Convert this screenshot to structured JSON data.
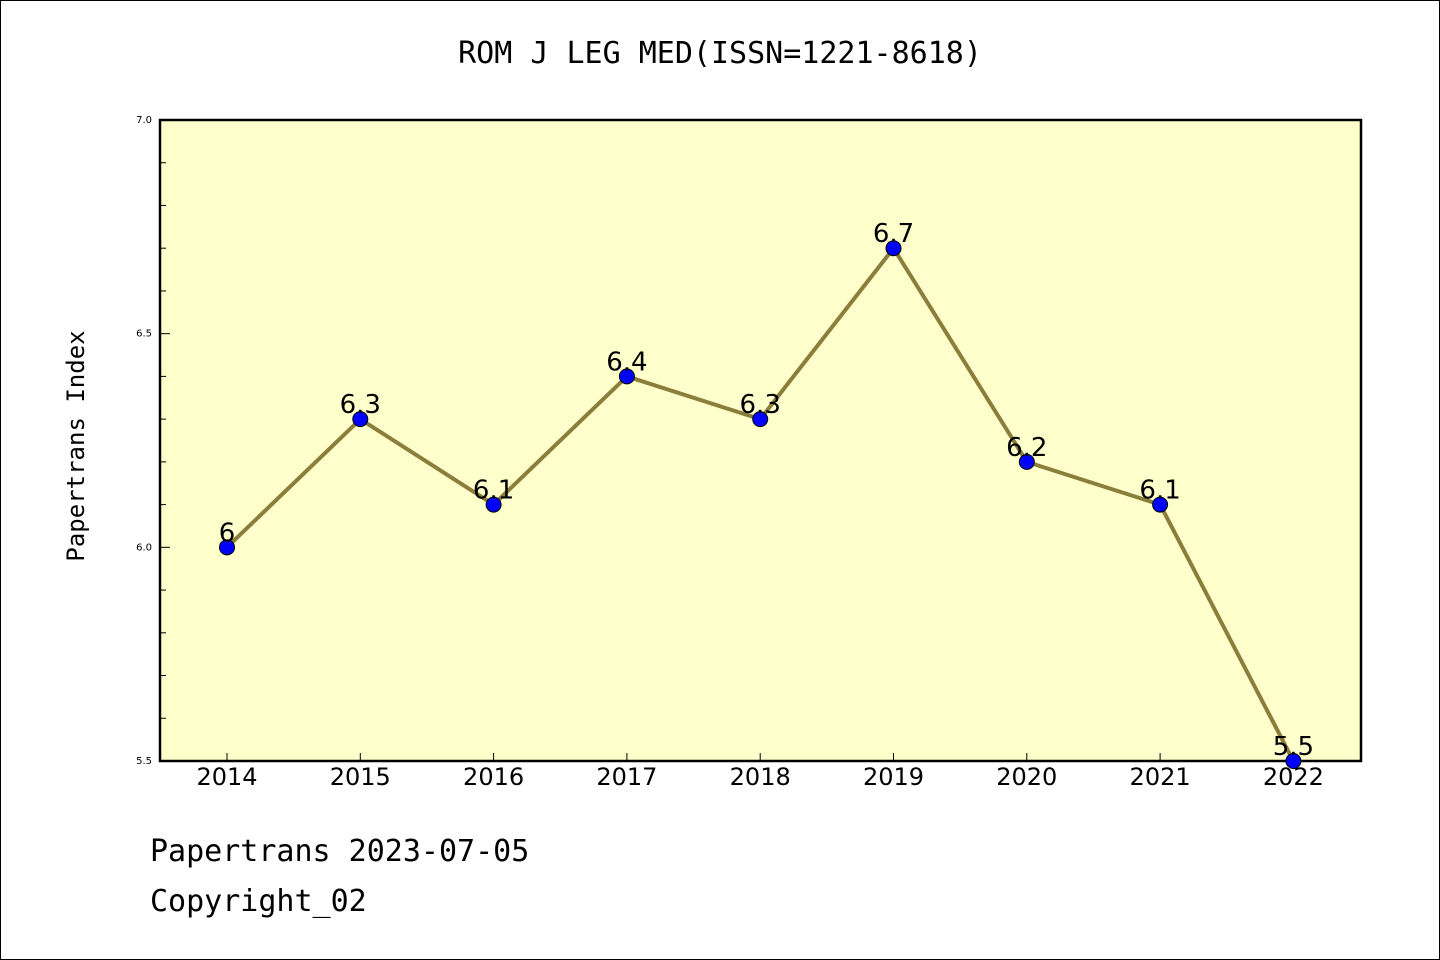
{
  "chart_data": {
    "type": "line",
    "title": "ROM J LEG MED(ISSN=1221-8618)",
    "xlabel": "",
    "ylabel": "Papertrans Index",
    "categories": [
      "2014",
      "2015",
      "2016",
      "2017",
      "2018",
      "2019",
      "2020",
      "2021",
      "2022"
    ],
    "values": [
      6,
      6.3,
      6.1,
      6.4,
      6.3,
      6.7,
      6.2,
      6.1,
      5.5
    ],
    "data_labels": [
      "6",
      "6.3",
      "6.1",
      "6.4",
      "6.3",
      "6.7",
      "6.2",
      "6.1",
      "5.5"
    ],
    "ylim": [
      5.5,
      7.0
    ],
    "yticks": [
      "5.5",
      "6.0",
      "6.5",
      "7.0"
    ],
    "grid": false,
    "plot_background": "#FFFFCC",
    "line_color": "#8B7D3A",
    "marker_color": "#0000FF"
  },
  "footer": {
    "line1": "Papertrans 2023-07-05",
    "line2": "Copyright_02"
  }
}
